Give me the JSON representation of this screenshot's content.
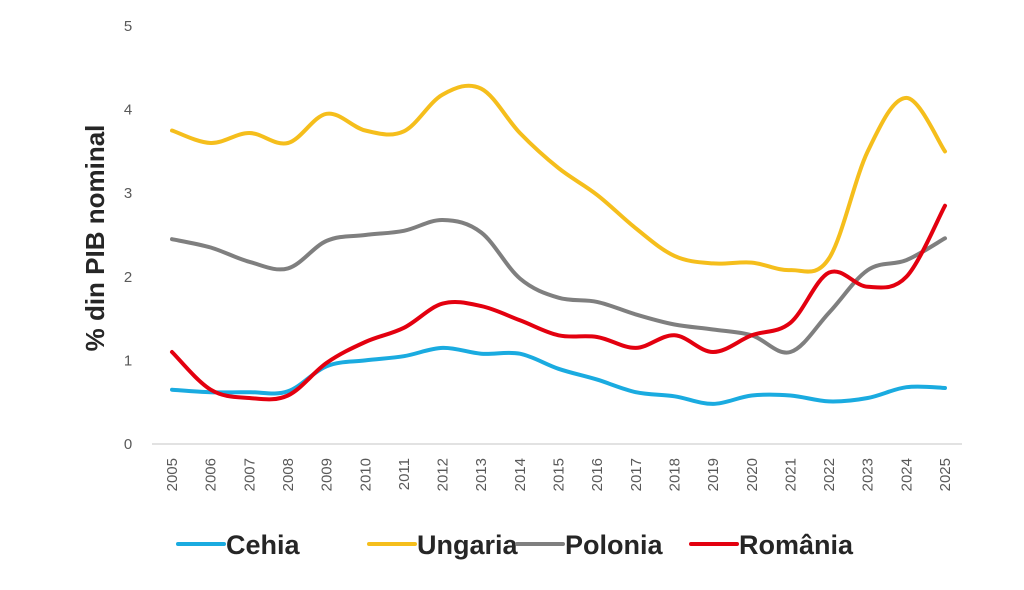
{
  "chart_data": {
    "type": "line",
    "title": "",
    "xlabel": "",
    "ylabel": "% din PIB nominal",
    "ylim": [
      0,
      5
    ],
    "yticks": [
      "0",
      "1",
      "2",
      "3",
      "4",
      "5"
    ],
    "grid": false,
    "legend_position": "bottom",
    "smooth": true,
    "categories": [
      "2005",
      "2006",
      "2007",
      "2008",
      "2009",
      "2010",
      "2011",
      "2012",
      "2013",
      "2014",
      "2015",
      "2016",
      "2017",
      "2018",
      "2019",
      "2020",
      "2021",
      "2022",
      "2023",
      "2024",
      "2025"
    ],
    "series": [
      {
        "name": "Cehia",
        "color": "#1AABE0",
        "values": [
          0.65,
          0.62,
          0.62,
          0.63,
          0.93,
          1.0,
          1.05,
          1.15,
          1.08,
          1.08,
          0.9,
          0.77,
          0.62,
          0.57,
          0.48,
          0.58,
          0.58,
          0.51,
          0.55,
          0.68,
          0.67
        ]
      },
      {
        "name": "Ungaria",
        "color": "#F5BE1C",
        "values": [
          3.75,
          3.6,
          3.72,
          3.6,
          3.95,
          3.75,
          3.74,
          4.18,
          4.25,
          3.72,
          3.3,
          2.98,
          2.58,
          2.25,
          2.16,
          2.17,
          2.08,
          2.22,
          3.5,
          4.14,
          3.5
        ]
      },
      {
        "name": "Polonia",
        "color": "#7F7F7F",
        "values": [
          2.45,
          2.35,
          2.18,
          2.1,
          2.43,
          2.5,
          2.55,
          2.68,
          2.53,
          1.98,
          1.75,
          1.7,
          1.55,
          1.43,
          1.37,
          1.3,
          1.1,
          1.57,
          2.08,
          2.2,
          2.46
        ]
      },
      {
        "name": "România",
        "color": "#E3000F",
        "values": [
          1.1,
          0.65,
          0.55,
          0.58,
          0.97,
          1.22,
          1.39,
          1.68,
          1.65,
          1.48,
          1.3,
          1.28,
          1.15,
          1.3,
          1.1,
          1.3,
          1.45,
          2.05,
          1.88,
          2.0,
          2.85
        ]
      }
    ]
  }
}
